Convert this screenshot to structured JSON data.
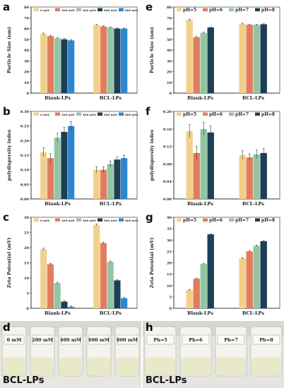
{
  "chart_data": [
    {
      "panel": "a",
      "type": "bar",
      "ylabel": "Particle Size (nm)",
      "ylim": [
        0,
        80
      ],
      "yticks": [
        0,
        10,
        20,
        30,
        40,
        50,
        60,
        70,
        80
      ],
      "categories": [
        "Blank-LPs",
        "BCL-LPs"
      ],
      "legend_position": "top-left",
      "series": [
        {
          "name": "0 mM",
          "color": "#f2cf8c",
          "values": [
            55,
            63.2
          ],
          "errors": [
            0.8,
            0.6
          ]
        },
        {
          "name": "200 mM",
          "color": "#e27c5e",
          "values": [
            53,
            62
          ],
          "errors": [
            0.8,
            0.6
          ]
        },
        {
          "name": "400 mM",
          "color": "#93c5a3",
          "values": [
            51,
            61
          ],
          "errors": [
            0.8,
            0.6
          ]
        },
        {
          "name": "600 mM",
          "color": "#1c3f55",
          "values": [
            50,
            60
          ],
          "errors": [
            0.8,
            0.6
          ]
        },
        {
          "name": "800 mM",
          "color": "#2d86cf",
          "values": [
            49,
            60
          ],
          "errors": [
            0.8,
            0.6
          ]
        }
      ]
    },
    {
      "panel": "b",
      "type": "bar",
      "ylabel": "polydispersity index",
      "ylim": [
        0,
        0.3
      ],
      "yticks": [
        0.0,
        0.05,
        0.1,
        0.15,
        0.2,
        0.25,
        0.3
      ],
      "categories": [
        "Blank-LPs",
        "BCL-LPs"
      ],
      "legend_position": "top-left",
      "series": [
        {
          "name": "0 mM",
          "color": "#f2cf8c",
          "values": [
            0.16,
            0.1
          ],
          "errors": [
            0.015,
            0.01
          ]
        },
        {
          "name": "200 mM",
          "color": "#e27c5e",
          "values": [
            0.14,
            0.1
          ],
          "errors": [
            0.015,
            0.01
          ]
        },
        {
          "name": "400 mM",
          "color": "#93c5a3",
          "values": [
            0.21,
            0.12
          ],
          "errors": [
            0.015,
            0.01
          ]
        },
        {
          "name": "600 mM",
          "color": "#1c3f55",
          "values": [
            0.23,
            0.135
          ],
          "errors": [
            0.015,
            0.01
          ]
        },
        {
          "name": "800 mM",
          "color": "#2d86cf",
          "values": [
            0.25,
            0.14
          ],
          "errors": [
            0.015,
            0.01
          ]
        }
      ]
    },
    {
      "panel": "c",
      "type": "bar",
      "ylabel": "Zeta Potential (mV)",
      "ylim": [
        0,
        30
      ],
      "yticks": [
        0,
        5,
        10,
        15,
        20,
        25,
        30
      ],
      "categories": [
        "Blank-LPs",
        "BCL-LPs"
      ],
      "legend_position": "top-left",
      "series": [
        {
          "name": "0 mM",
          "color": "#f2cf8c",
          "values": [
            19.5,
            27.5
          ],
          "errors": [
            0.3,
            0.3
          ]
        },
        {
          "name": "200 mM",
          "color": "#e27c5e",
          "values": [
            14.5,
            21.5
          ],
          "errors": [
            0.3,
            0.3
          ]
        },
        {
          "name": "400 mM",
          "color": "#93c5a3",
          "values": [
            8.3,
            15.3
          ],
          "errors": [
            0.3,
            0.3
          ]
        },
        {
          "name": "600 mM",
          "color": "#1c3f55",
          "values": [
            2.2,
            9.2
          ],
          "errors": [
            0.3,
            0.3
          ]
        },
        {
          "name": "800 mM",
          "color": "#2d86cf",
          "values": [
            0.5,
            3.3
          ],
          "errors": [
            0.3,
            0.3
          ]
        }
      ]
    },
    {
      "panel": "e",
      "type": "bar",
      "ylabel": "Particle Size (nm)",
      "ylim": [
        0,
        80
      ],
      "yticks": [
        0,
        10,
        20,
        30,
        40,
        50,
        60,
        70,
        80
      ],
      "categories": [
        "Blank-LPs",
        "BCL-LPs"
      ],
      "legend_position": "top",
      "series": [
        {
          "name": "pH=5",
          "color": "#f2cf8c",
          "values": [
            68,
            64.5
          ],
          "errors": [
            0.6,
            0.5
          ]
        },
        {
          "name": "pH=6",
          "color": "#e27c5e",
          "values": [
            52,
            63.5
          ],
          "errors": [
            0.6,
            0.5
          ]
        },
        {
          "name": "pH=7",
          "color": "#93c5a3",
          "values": [
            56,
            63.5
          ],
          "errors": [
            0.6,
            0.5
          ]
        },
        {
          "name": "pH=8",
          "color": "#1c3f55",
          "values": [
            61,
            64
          ],
          "errors": [
            0.6,
            0.5
          ]
        }
      ]
    },
    {
      "panel": "f",
      "type": "bar",
      "ylabel": "polydispersity index",
      "ylim": [
        0,
        0.2
      ],
      "yticks": [
        0.0,
        0.04,
        0.08,
        0.12,
        0.16,
        0.2
      ],
      "categories": [
        "Blank-LPs",
        "BCL-LPs"
      ],
      "legend_position": "top",
      "series": [
        {
          "name": "pH=5",
          "color": "#f2cf8c",
          "values": [
            0.155,
            0.1
          ],
          "errors": [
            0.015,
            0.01
          ]
        },
        {
          "name": "pH=6",
          "color": "#e27c5e",
          "values": [
            0.105,
            0.095
          ],
          "errors": [
            0.015,
            0.008
          ]
        },
        {
          "name": "pH=7",
          "color": "#93c5a3",
          "values": [
            0.16,
            0.102
          ],
          "errors": [
            0.015,
            0.01
          ]
        },
        {
          "name": "pH=8",
          "color": "#1c3f55",
          "values": [
            0.152,
            0.105
          ],
          "errors": [
            0.015,
            0.01
          ]
        }
      ]
    },
    {
      "panel": "g",
      "type": "bar",
      "ylabel": "Zeta Potential (mV)",
      "ylim": [
        0,
        40
      ],
      "yticks": [
        0,
        5,
        10,
        15,
        20,
        25,
        30,
        35,
        40
      ],
      "categories": [
        "Blank-LPs",
        "BCL-LPs"
      ],
      "legend_position": "top",
      "series": [
        {
          "name": "pH=5",
          "color": "#f2cf8c",
          "values": [
            8,
            22
          ],
          "errors": [
            0.3,
            0.3
          ]
        },
        {
          "name": "pH=6",
          "color": "#e27c5e",
          "values": [
            13,
            25
          ],
          "errors": [
            0.3,
            0.3
          ]
        },
        {
          "name": "pH=7",
          "color": "#93c5a3",
          "values": [
            19.5,
            27.5
          ],
          "errors": [
            0.3,
            0.3
          ]
        },
        {
          "name": "pH=8",
          "color": "#1c3f55",
          "values": [
            32.5,
            29.5
          ],
          "errors": [
            0.3,
            0.3
          ]
        }
      ]
    }
  ],
  "photos": {
    "d": {
      "letter": "d",
      "labels": [
        "0 mM",
        "200 mM",
        "400 mM",
        "600 mM",
        "800 mM"
      ],
      "caption": "BCL-LPs"
    },
    "h": {
      "letter": "h",
      "labels": [
        "Ph=5",
        "Ph=6",
        "Ph=7",
        "Ph=8"
      ],
      "caption": "BCL-LPs"
    }
  }
}
